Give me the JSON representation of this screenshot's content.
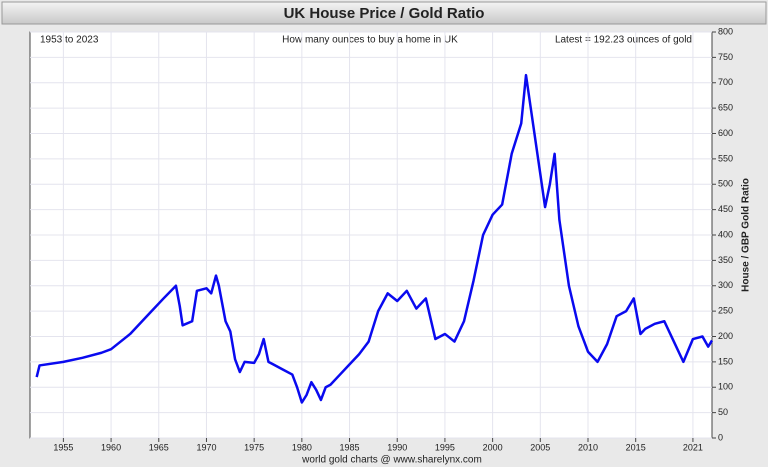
{
  "chart_data": {
    "type": "line",
    "title": "UK House Price / Gold Ratio",
    "annotations": [
      "1953 to 2023",
      "How many ounces to buy a home in UK",
      "Latest = 192.23 ounces of gold"
    ],
    "ylabel": "House / GBP Gold Ratio",
    "xlabel": "world gold charts @ www.sharelynx.com",
    "x": [
      1952.2,
      1952.5,
      1955,
      1957,
      1959,
      1960,
      1962,
      1964,
      1965.5,
      1966.8,
      1967.2,
      1967.5,
      1968.5,
      1969,
      1970,
      1970.5,
      1971,
      1971.3,
      1971.6,
      1972,
      1972.5,
      1973,
      1973.5,
      1974,
      1975,
      1975.5,
      1976,
      1976.5,
      1977,
      1978,
      1979,
      1979.5,
      1980,
      1980.5,
      1981,
      1981.5,
      1982,
      1982.5,
      1983,
      1984,
      1985,
      1986,
      1987,
      1988,
      1989,
      1990,
      1991,
      1992,
      1993,
      1994,
      1995,
      1996,
      1997,
      1998,
      1999,
      2000,
      2001,
      2002,
      2003,
      2003.5,
      2004,
      2005,
      2005.5,
      2006,
      2006.5,
      2007,
      2008,
      2009,
      2010,
      2011,
      2012,
      2013,
      2014,
      2014.8,
      2015.5,
      2016,
      2017,
      2018,
      2019,
      2020,
      2021,
      2022,
      2022.6,
      2023
    ],
    "series": [
      {
        "color": "#0a0aef",
        "values": [
          120,
          143,
          150,
          158,
          168,
          175,
          205,
          245,
          275,
          300,
          260,
          222,
          230,
          290,
          295,
          285,
          320,
          300,
          270,
          230,
          210,
          155,
          130,
          150,
          148,
          165,
          195,
          150,
          145,
          135,
          125,
          100,
          70,
          85,
          110,
          95,
          75,
          100,
          105,
          125,
          145,
          165,
          190,
          250,
          285,
          270,
          290,
          255,
          275,
          195,
          205,
          190,
          230,
          310,
          400,
          440,
          460,
          560,
          620,
          715,
          650,
          520,
          455,
          500,
          560,
          430,
          300,
          220,
          170,
          150,
          185,
          240,
          250,
          275,
          205,
          215,
          225,
          230,
          190,
          150,
          195,
          200,
          180,
          192.23
        ]
      }
    ],
    "xlim": [
      1951.5,
      2023
    ],
    "xticks": [
      1955,
      1960,
      1965,
      1970,
      1975,
      1980,
      1985,
      1990,
      1995,
      2000,
      2005,
      2010,
      2015,
      2021
    ],
    "ylim": [
      0,
      800
    ],
    "yticks": [
      0,
      50,
      100,
      150,
      200,
      250,
      300,
      350,
      400,
      450,
      500,
      550,
      600,
      650,
      700,
      750,
      800
    ],
    "grid": true
  }
}
